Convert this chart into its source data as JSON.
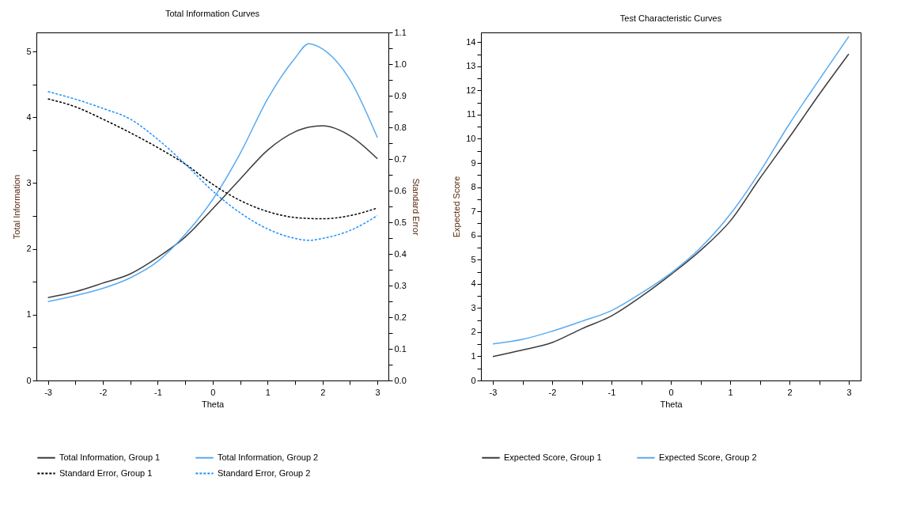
{
  "chart_data": [
    {
      "type": "line",
      "title": "Total Information Curves",
      "xlabel": "Theta",
      "ylabel": "Total Information",
      "y2label": "Standard Error",
      "legend": "bottom",
      "grid": false,
      "xlim": [
        -3.21,
        3.2
      ],
      "xticks": [
        -3,
        {
          "value": -2.5,
          "label": null
        },
        -2,
        {
          "value": -1.5,
          "label": null
        },
        -1,
        {
          "value": -0.5,
          "label": null
        },
        0,
        {
          "value": 0.5,
          "label": null
        },
        1,
        {
          "value": 1.5,
          "label": null
        },
        2,
        {
          "value": 2.5,
          "label": null
        },
        3
      ],
      "ylim": [
        0,
        5.29
      ],
      "yticks": [
        0,
        {
          "value": 0.5,
          "label": null
        },
        1,
        {
          "value": 1.5,
          "label": null
        },
        2,
        {
          "value": 2.5,
          "label": null
        },
        3,
        {
          "value": 3.5,
          "label": null
        },
        4,
        {
          "value": 4.5,
          "label": null
        },
        5
      ],
      "y2lim": [
        0,
        1.1
      ],
      "y2ticks": [
        {
          "value": 0,
          "label": "0.0"
        },
        {
          "value": 0.05,
          "label": null
        },
        0.1,
        {
          "value": 0.15,
          "label": null
        },
        0.2,
        {
          "value": 0.25,
          "label": null
        },
        0.3,
        {
          "value": 0.35,
          "label": null
        },
        0.4,
        {
          "value": 0.45,
          "label": null
        },
        0.5,
        {
          "value": 0.55,
          "label": null
        },
        0.6,
        {
          "value": 0.65,
          "label": null
        },
        0.7,
        {
          "value": 0.75,
          "label": null
        },
        0.8,
        {
          "value": 0.85,
          "label": null
        },
        0.9,
        {
          "value": 0.95,
          "label": null
        },
        {
          "value": 1,
          "label": "1.0"
        },
        {
          "value": 1.05,
          "label": null
        },
        1.1
      ],
      "x": [
        -3,
        -2.5,
        -2,
        -1.5,
        -1,
        -0.5,
        0,
        0.5,
        1,
        1.5,
        1.75,
        2,
        2.5,
        3
      ],
      "series": [
        {
          "name": "Total Information, Group 1",
          "color": "#3c3c3c",
          "line_style": "solid",
          "values": [
            1.26,
            1.35,
            1.48,
            1.62,
            1.87,
            2.18,
            2.61,
            3.06,
            3.5,
            3.78,
            3.85,
            3.87,
            3.72,
            3.37
          ]
        },
        {
          "name": "Total Information, Group 2",
          "color": "#5aaaf0",
          "line_style": "solid",
          "values": [
            1.2,
            1.29,
            1.4,
            1.56,
            1.81,
            2.22,
            2.75,
            3.45,
            4.28,
            4.9,
            5.12,
            5.04,
            4.57,
            3.69
          ]
        },
        {
          "name": "Standard Error, Group 1",
          "color": "#000000",
          "line_style": "dashed",
          "axis": "y2",
          "values": [
            0.89,
            0.865,
            0.826,
            0.783,
            0.736,
            0.684,
            0.62,
            0.569,
            0.534,
            0.515,
            0.512,
            0.511,
            0.521,
            0.545
          ]
        },
        {
          "name": "Standard Error, Group 2",
          "color": "#1e8fff",
          "line_style": "dashed",
          "axis": "y2",
          "values": [
            0.913,
            0.889,
            0.86,
            0.826,
            0.762,
            0.684,
            0.599,
            0.53,
            0.479,
            0.449,
            0.443,
            0.449,
            0.474,
            0.521
          ]
        }
      ]
    },
    {
      "type": "line",
      "title": "Test Characteristic Curves",
      "xlabel": "Theta",
      "ylabel": "Expected Score",
      "legend": "bottom",
      "grid": false,
      "xlim": [
        -3.2,
        3.2
      ],
      "xticks": [
        -3,
        {
          "value": -2.5,
          "label": null
        },
        -2,
        {
          "value": -1.5,
          "label": null
        },
        -1,
        {
          "value": -0.5,
          "label": null
        },
        0,
        {
          "value": 0.5,
          "label": null
        },
        1,
        {
          "value": 1.5,
          "label": null
        },
        2,
        {
          "value": 2.5,
          "label": null
        },
        3
      ],
      "ylim": [
        0,
        14.4
      ],
      "yticks": [
        0,
        {
          "value": 0.5,
          "label": null
        },
        1,
        {
          "value": 1.5,
          "label": null
        },
        2,
        {
          "value": 2.5,
          "label": null
        },
        3,
        {
          "value": 3.5,
          "label": null
        },
        4,
        {
          "value": 4.5,
          "label": null
        },
        5,
        {
          "value": 5.5,
          "label": null
        },
        6,
        {
          "value": 6.5,
          "label": null
        },
        7,
        {
          "value": 7.5,
          "label": null
        },
        8,
        {
          "value": 8.5,
          "label": null
        },
        9,
        {
          "value": 9.5,
          "label": null
        },
        10,
        {
          "value": 10.5,
          "label": null
        },
        11,
        {
          "value": 11.5,
          "label": null
        },
        12,
        {
          "value": 12.5,
          "label": null
        },
        13,
        {
          "value": 13.5,
          "label": null
        },
        14
      ],
      "x": [
        -3,
        -2.5,
        -2,
        -1.5,
        -1,
        -0.5,
        0,
        0.5,
        1,
        1.5,
        2,
        2.5,
        3
      ],
      "series": [
        {
          "name": "Expected Score, Group 1",
          "color": "#3c3c3c",
          "line_style": "solid",
          "values": [
            0.99,
            1.26,
            1.57,
            2.14,
            2.67,
            3.47,
            4.38,
            5.38,
            6.59,
            8.36,
            10.07,
            11.83,
            13.51
          ]
        },
        {
          "name": "Expected Score, Group 2",
          "color": "#5aaaf0",
          "line_style": "solid",
          "values": [
            1.51,
            1.7,
            2.04,
            2.45,
            2.89,
            3.61,
            4.44,
            5.49,
            6.87,
            8.63,
            10.62,
            12.44,
            14.23
          ]
        }
      ]
    }
  ]
}
